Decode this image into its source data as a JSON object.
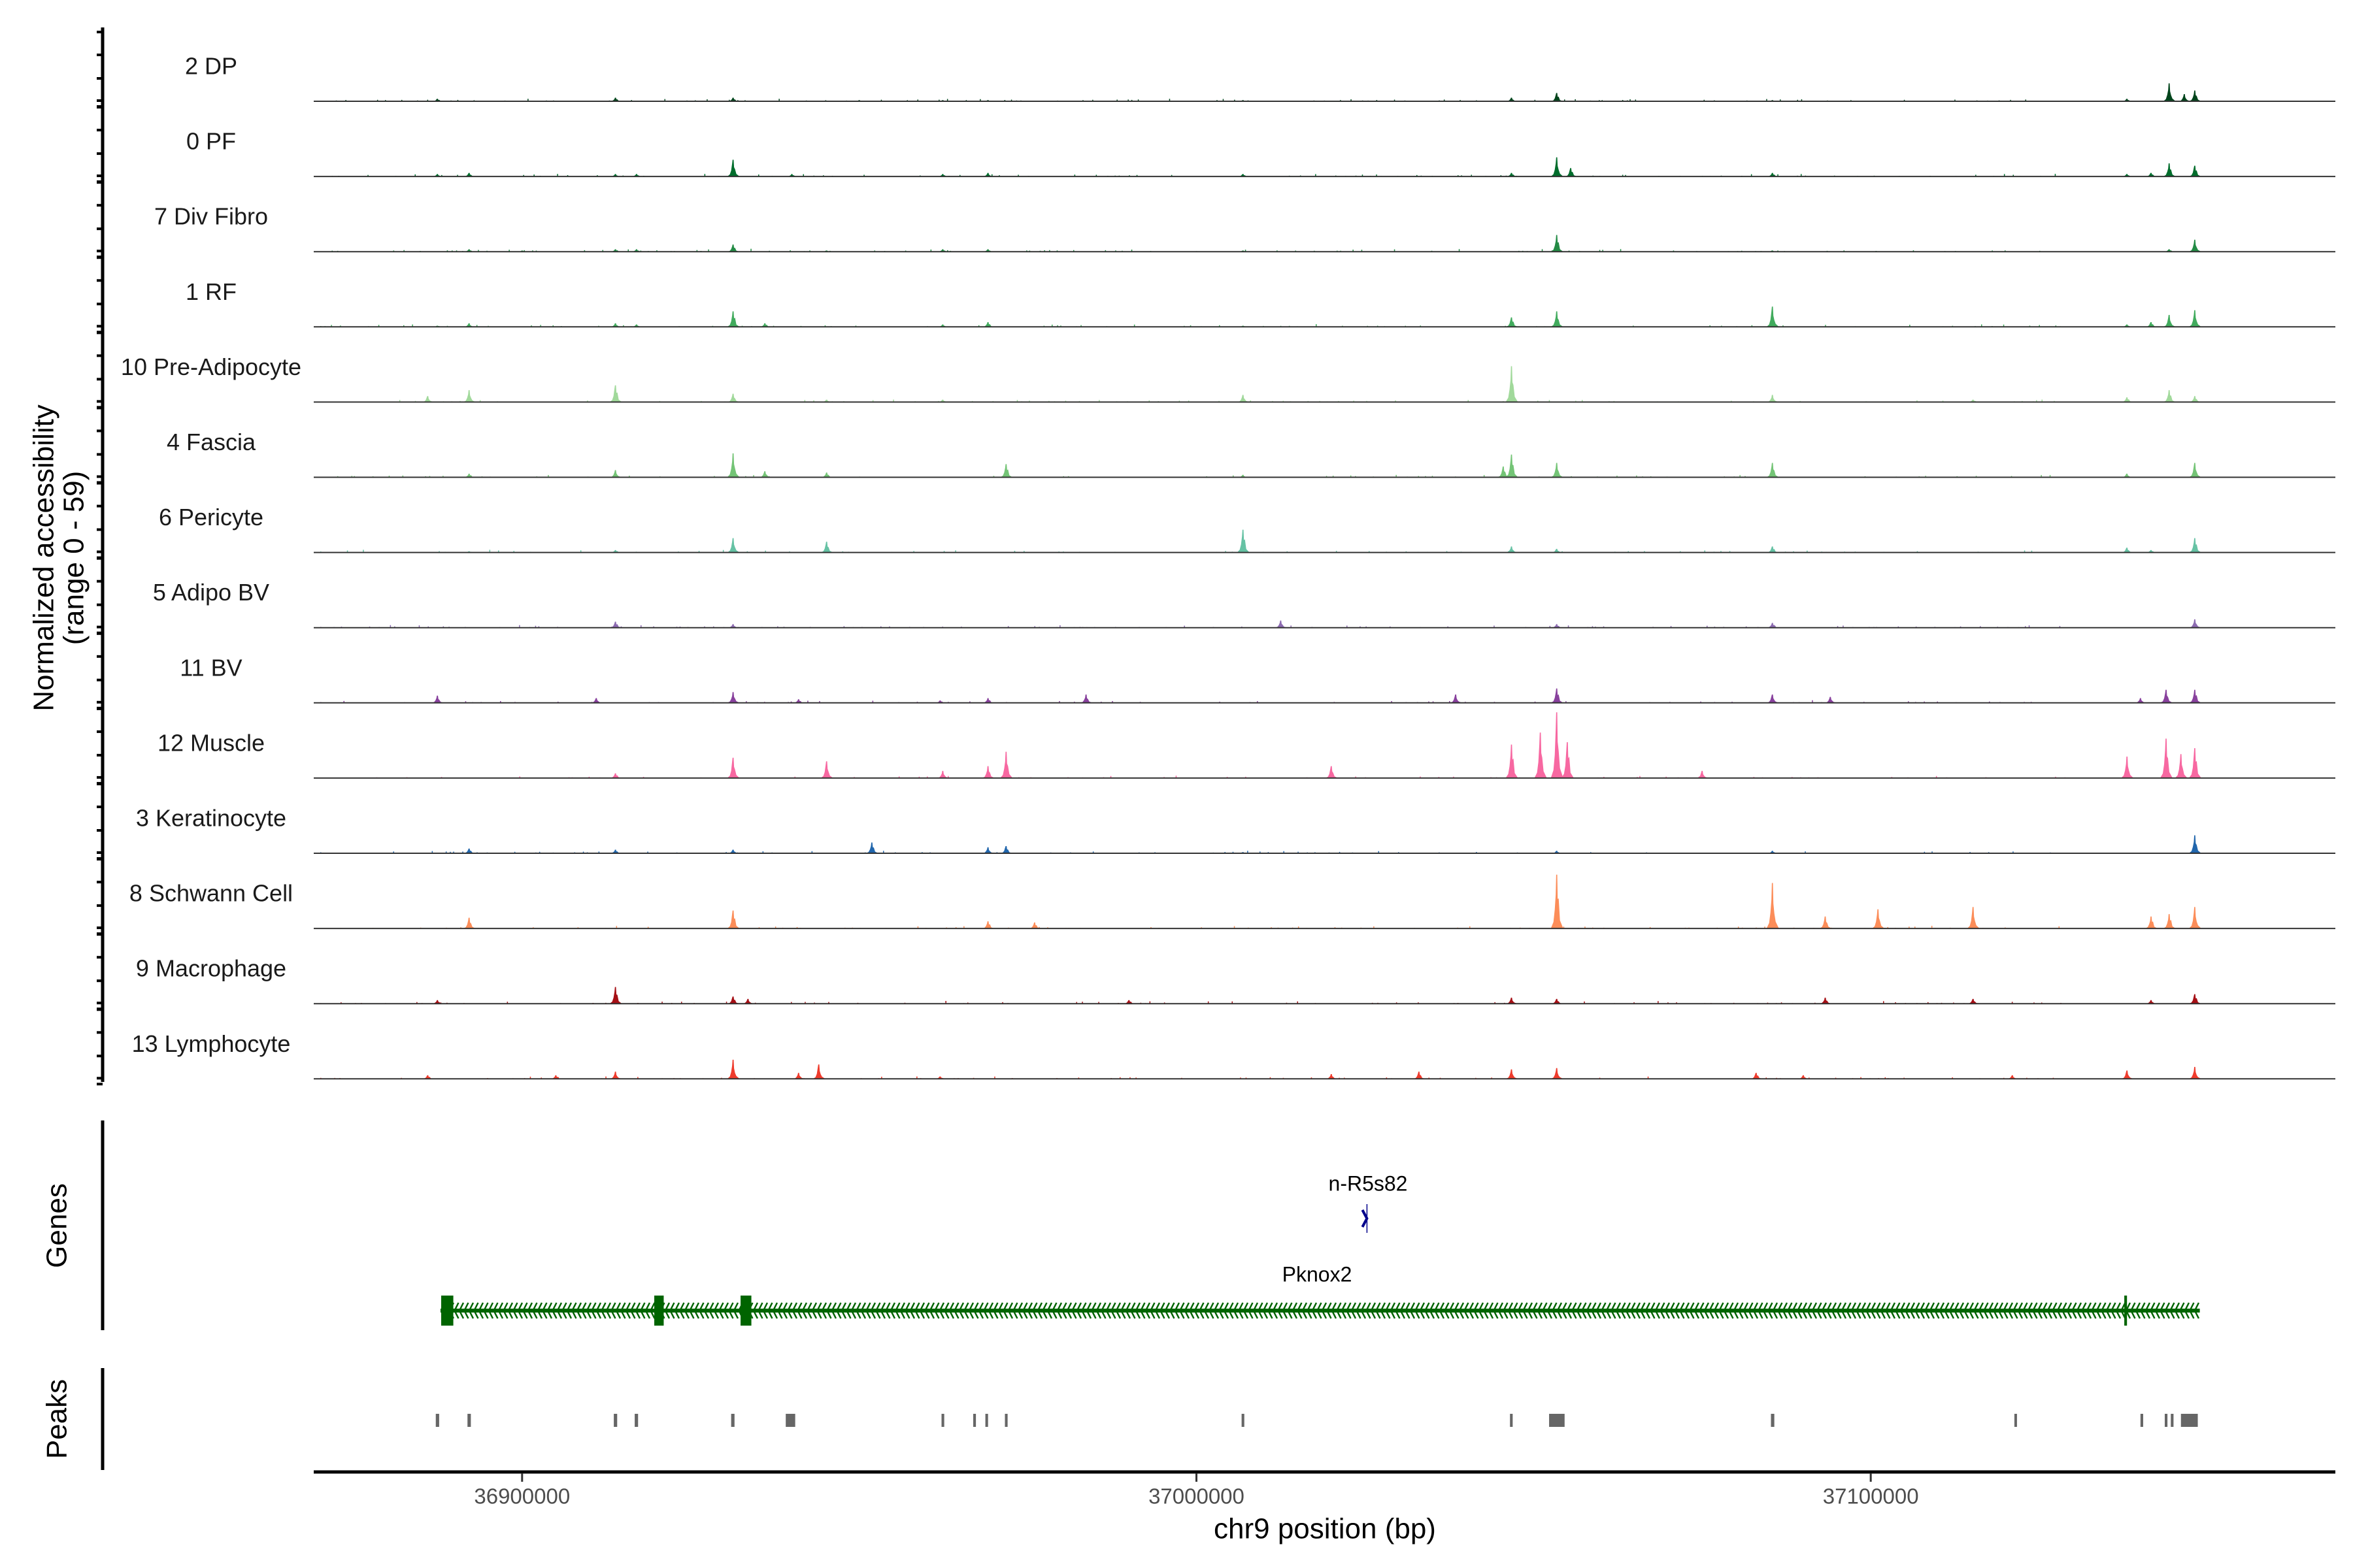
{
  "chart_data": {
    "type": "area",
    "title": "",
    "xlabel": "chr9 position (bp)",
    "ylabel": "Normalized accessibility",
    "ylabel_range": "(range 0 - 59)",
    "xlim": [
      36869100,
      37168900
    ],
    "ylim": [
      0,
      59
    ],
    "x_ticks": [
      {
        "value": 36900000,
        "label": "36900000"
      },
      {
        "value": 37000000,
        "label": "37000000"
      },
      {
        "value": 37100000,
        "label": "37100000"
      }
    ],
    "tracks": [
      {
        "name": "2 DP",
        "color": "#00441b",
        "peaks": [
          [
            36887440,
            2
          ],
          [
            36913840,
            3
          ],
          [
            36931290,
            3
          ],
          [
            36950000,
            1
          ],
          [
            36962380,
            1
          ],
          [
            36969090,
            1
          ],
          [
            37006900,
            1
          ],
          [
            37046720,
            3
          ],
          [
            37053430,
            7
          ],
          [
            37085420,
            1
          ],
          [
            37137990,
            2
          ],
          [
            37144250,
            15
          ],
          [
            37146500,
            6
          ],
          [
            37148050,
            9
          ]
        ]
      },
      {
        "name": "0 PF",
        "color": "#006d2c",
        "peaks": [
          [
            36887440,
            2
          ],
          [
            36892140,
            3
          ],
          [
            36913840,
            2
          ],
          [
            36916970,
            2
          ],
          [
            36931290,
            14
          ],
          [
            36940000,
            2
          ],
          [
            36962380,
            2
          ],
          [
            36969090,
            3
          ],
          [
            37006900,
            2
          ],
          [
            37046720,
            3
          ],
          [
            37053430,
            16
          ],
          [
            37055500,
            7
          ],
          [
            37085420,
            3
          ],
          [
            37137990,
            2
          ],
          [
            37141570,
            3
          ],
          [
            37144250,
            11
          ],
          [
            37148050,
            9
          ]
        ]
      },
      {
        "name": "7 Div Fibro",
        "color": "#238b45",
        "peaks": [
          [
            36892140,
            2
          ],
          [
            36900000,
            1
          ],
          [
            36913840,
            2
          ],
          [
            36916970,
            2
          ],
          [
            36931290,
            6
          ],
          [
            36945160,
            1
          ],
          [
            36962380,
            2
          ],
          [
            36969090,
            2
          ],
          [
            37006900,
            1
          ],
          [
            37053430,
            14
          ],
          [
            37085420,
            1
          ],
          [
            37144250,
            2
          ],
          [
            37148050,
            10
          ]
        ]
      },
      {
        "name": "1 RF",
        "color": "#41ab5d",
        "peaks": [
          [
            36887440,
            1
          ],
          [
            36892140,
            3
          ],
          [
            36913840,
            3
          ],
          [
            36916970,
            2
          ],
          [
            36931290,
            13
          ],
          [
            36936000,
            3
          ],
          [
            36962380,
            2
          ],
          [
            36969090,
            4
          ],
          [
            37006900,
            1
          ],
          [
            37046720,
            8
          ],
          [
            37053430,
            13
          ],
          [
            37085420,
            17
          ],
          [
            37137990,
            2
          ],
          [
            37141570,
            4
          ],
          [
            37144250,
            10
          ],
          [
            37148050,
            14
          ]
        ]
      },
      {
        "name": "10 Pre-Adipocyte",
        "color": "#a1d99b",
        "peaks": [
          [
            36886000,
            5
          ],
          [
            36892140,
            10
          ],
          [
            36913840,
            14
          ],
          [
            36931290,
            7
          ],
          [
            36945160,
            2
          ],
          [
            36962380,
            2
          ],
          [
            37006900,
            6
          ],
          [
            37046720,
            30
          ],
          [
            37085420,
            6
          ],
          [
            37115170,
            2
          ],
          [
            37137990,
            4
          ],
          [
            37144250,
            10
          ],
          [
            37148050,
            5
          ]
        ]
      },
      {
        "name": "4 Fascia",
        "color": "#74c476",
        "peaks": [
          [
            36892140,
            3
          ],
          [
            36913840,
            6
          ],
          [
            36931290,
            20
          ],
          [
            36936000,
            5
          ],
          [
            36945160,
            4
          ],
          [
            36971780,
            11
          ],
          [
            37006900,
            2
          ],
          [
            37045500,
            9
          ],
          [
            37046720,
            19
          ],
          [
            37053430,
            12
          ],
          [
            37085420,
            12
          ],
          [
            37137990,
            3
          ],
          [
            37148050,
            12
          ]
        ]
      },
      {
        "name": "6 Pericyte",
        "color": "#66c2a4",
        "peaks": [
          [
            36892140,
            1
          ],
          [
            36913840,
            2
          ],
          [
            36931290,
            12
          ],
          [
            36945160,
            9
          ],
          [
            37006900,
            19
          ],
          [
            37046720,
            5
          ],
          [
            37053430,
            3
          ],
          [
            37085420,
            5
          ],
          [
            37137990,
            4
          ],
          [
            37141570,
            2
          ],
          [
            37148050,
            12
          ]
        ]
      },
      {
        "name": "5 Adipo BV",
        "color": "#8c6bb1",
        "peaks": [
          [
            36913840,
            5
          ],
          [
            36931290,
            3
          ],
          [
            37012500,
            6
          ],
          [
            37053430,
            3
          ],
          [
            37085420,
            4
          ],
          [
            37148050,
            7
          ]
        ]
      },
      {
        "name": "11 BV",
        "color": "#88419d",
        "peaks": [
          [
            36887440,
            6
          ],
          [
            36911000,
            4
          ],
          [
            36931290,
            9
          ],
          [
            36941000,
            3
          ],
          [
            36962000,
            2
          ],
          [
            36969090,
            4
          ],
          [
            36983630,
            7
          ],
          [
            37038440,
            7
          ],
          [
            37053430,
            12
          ],
          [
            37085420,
            7
          ],
          [
            37094000,
            5
          ],
          [
            37140000,
            4
          ],
          [
            37143800,
            11
          ],
          [
            37148050,
            11
          ]
        ]
      },
      {
        "name": "12 Muscle",
        "color": "#f768a1",
        "peaks": [
          [
            36913840,
            4
          ],
          [
            36931290,
            17
          ],
          [
            36945160,
            14
          ],
          [
            36962380,
            6
          ],
          [
            36969090,
            10
          ],
          [
            36971780,
            22
          ],
          [
            37020000,
            10
          ],
          [
            37046720,
            28
          ],
          [
            37051000,
            38
          ],
          [
            37053430,
            55
          ],
          [
            37055000,
            30
          ],
          [
            37075000,
            6
          ],
          [
            37138000,
            18
          ],
          [
            37143800,
            33
          ],
          [
            37146000,
            20
          ],
          [
            37148050,
            25
          ]
        ]
      },
      {
        "name": "3 Keratinocyte",
        "color": "#2166ac",
        "peaks": [
          [
            36892140,
            4
          ],
          [
            36913840,
            3
          ],
          [
            36931290,
            3
          ],
          [
            36951870,
            9
          ],
          [
            36969090,
            5
          ],
          [
            36971780,
            6
          ],
          [
            37006900,
            1
          ],
          [
            37053430,
            2
          ],
          [
            37085420,
            2
          ],
          [
            37148050,
            15
          ]
        ]
      },
      {
        "name": "8 Schwann Cell",
        "color": "#fc8d59",
        "peaks": [
          [
            36892140,
            9
          ],
          [
            36931290,
            15
          ],
          [
            36969090,
            6
          ],
          [
            36976000,
            5
          ],
          [
            37053430,
            45
          ],
          [
            37085420,
            38
          ],
          [
            37093250,
            10
          ],
          [
            37101070,
            16
          ],
          [
            37115170,
            18
          ],
          [
            37141570,
            10
          ],
          [
            37144250,
            12
          ],
          [
            37148050,
            18
          ]
        ]
      },
      {
        "name": "9 Macrophage",
        "color": "#a50f15",
        "peaks": [
          [
            36887440,
            3
          ],
          [
            36913840,
            14
          ],
          [
            36931290,
            6
          ],
          [
            36933500,
            4
          ],
          [
            36990000,
            3
          ],
          [
            37046720,
            5
          ],
          [
            37053430,
            4
          ],
          [
            37093250,
            5
          ],
          [
            37115170,
            4
          ],
          [
            37141570,
            3
          ],
          [
            37148050,
            8
          ]
        ]
      },
      {
        "name": "13 Lymphocyte",
        "color": "#ef3b2c",
        "peaks": [
          [
            36886000,
            3
          ],
          [
            36905000,
            3
          ],
          [
            36913840,
            6
          ],
          [
            36931290,
            16
          ],
          [
            36941000,
            5
          ],
          [
            36944000,
            12
          ],
          [
            36962000,
            2
          ],
          [
            37020000,
            4
          ],
          [
            37033000,
            6
          ],
          [
            37046720,
            8
          ],
          [
            37053430,
            9
          ],
          [
            37083000,
            5
          ],
          [
            37090000,
            3
          ],
          [
            37121000,
            3
          ],
          [
            37138000,
            7
          ],
          [
            37148050,
            10
          ]
        ]
      }
    ],
    "genes_panel_label": "Genes",
    "genes": [
      {
        "name": "n-R5s82",
        "strand": "+",
        "start": 37024700,
        "end": 37025300,
        "color": "#00008b",
        "exons": []
      },
      {
        "name": "Pknox2",
        "strand": "-",
        "start": 36887900,
        "end": 37148800,
        "color": "#006400",
        "exons": [
          [
            36888000,
            36889800
          ],
          [
            36919600,
            36921000
          ],
          [
            36932400,
            36934000
          ],
          [
            37137600,
            37138000
          ]
        ]
      }
    ],
    "peaks_panel_label": "Peaks",
    "peaks": [
      [
        36887200,
        36887700
      ],
      [
        36891900,
        36892400
      ],
      [
        36913600,
        36914100
      ],
      [
        36916700,
        36917200
      ],
      [
        36931000,
        36931500
      ],
      [
        36939100,
        36940500
      ],
      [
        36962200,
        36962600
      ],
      [
        36966900,
        36967300
      ],
      [
        36968700,
        36969100
      ],
      [
        36971600,
        36972000
      ],
      [
        37006700,
        37007100
      ],
      [
        37046500,
        37046900
      ],
      [
        37052300,
        37054600
      ],
      [
        37085200,
        37085700
      ],
      [
        37121300,
        37121600
      ],
      [
        37140000,
        37140400
      ],
      [
        37143600,
        37144000
      ],
      [
        37144500,
        37144900
      ],
      [
        37146000,
        37148500
      ]
    ],
    "peak_color": "#666666"
  }
}
